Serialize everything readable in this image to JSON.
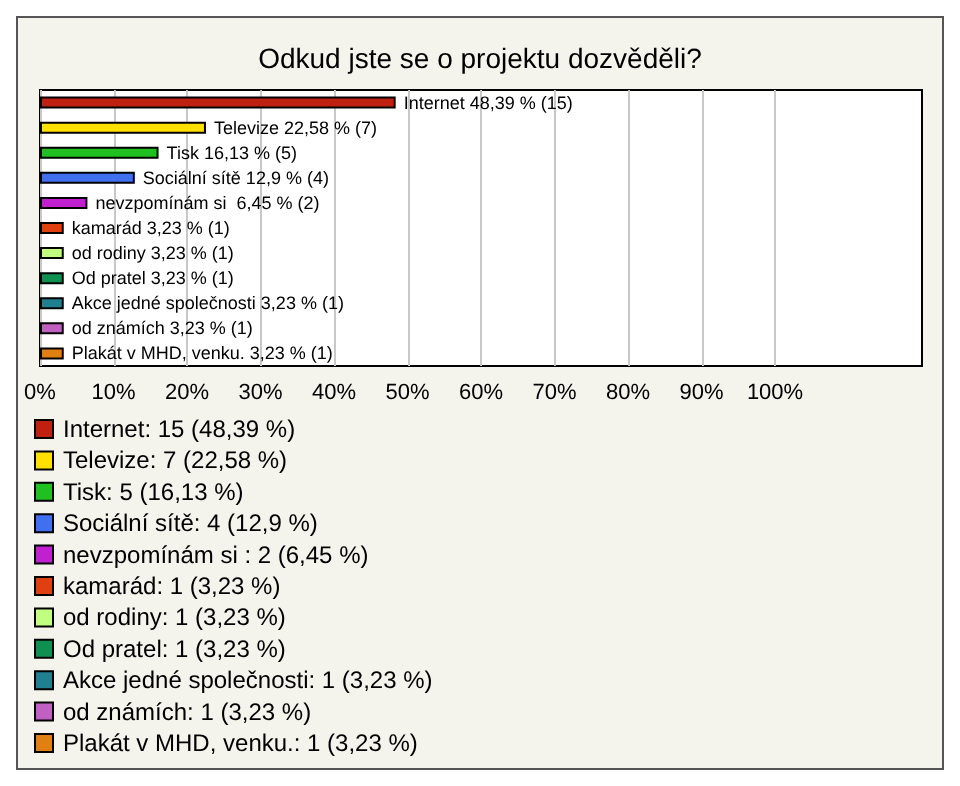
{
  "chart_data": {
    "type": "bar",
    "orientation": "horizontal",
    "stacked": true,
    "title": "Odkud jste se o projektu dozvěděli?",
    "categories": [
      null,
      null,
      null,
      null,
      null,
      null,
      null,
      null,
      null,
      null,
      null
    ],
    "series": [
      {
        "name": "Internet: 15 (48,39 %)",
        "color": "#c0200f",
        "values": [
          48.39,
          null,
          null,
          null,
          null,
          null,
          null,
          null,
          null,
          null,
          null
        ],
        "value_labels": [
          "Internet 48,39 % (15)",
          null,
          null,
          null,
          null,
          null,
          null,
          null,
          null,
          null,
          null
        ]
      },
      {
        "name": "Televize: 7 (22,58 %)",
        "color": "#ffe000",
        "values": [
          null,
          22.58,
          null,
          null,
          null,
          null,
          null,
          null,
          null,
          null,
          null
        ],
        "value_labels": [
          null,
          "Televize 22,58 % (7)",
          null,
          null,
          null,
          null,
          null,
          null,
          null,
          null,
          null
        ]
      },
      {
        "name": "Tisk: 5 (16,13 %)",
        "color": "#20c020",
        "values": [
          null,
          null,
          16.13,
          null,
          null,
          null,
          null,
          null,
          null,
          null,
          null
        ],
        "value_labels": [
          null,
          null,
          "Tisk 16,13 % (5)",
          null,
          null,
          null,
          null,
          null,
          null,
          null,
          null
        ]
      },
      {
        "name": "Sociální sítě: 4 (12,9 %)",
        "color": "#4070f0",
        "values": [
          null,
          null,
          null,
          12.9,
          null,
          null,
          null,
          null,
          null,
          null,
          null
        ],
        "value_labels": [
          null,
          null,
          null,
          "Sociální sítě 12,9 % (4)",
          null,
          null,
          null,
          null,
          null,
          null,
          null
        ]
      },
      {
        "name": "nevzpomínám si : 2 (6,45 %)",
        "color": "#c020d0",
        "values": [
          null,
          null,
          null,
          null,
          6.45,
          null,
          null,
          null,
          null,
          null,
          null
        ],
        "value_labels": [
          null,
          null,
          null,
          null,
          "nevzpomínám si  6,45 % (2)",
          null,
          null,
          null,
          null,
          null,
          null
        ]
      },
      {
        "name": "kamarád: 1 (3,23 %)",
        "color": "#e04010",
        "values": [
          null,
          null,
          null,
          null,
          null,
          3.23,
          null,
          null,
          null,
          null,
          null
        ],
        "value_labels": [
          null,
          null,
          null,
          null,
          null,
          "kamarád 3,23 % (1)",
          null,
          null,
          null,
          null,
          null
        ]
      },
      {
        "name": "od rodiny: 1 (3,23 %)",
        "color": "#c0ff80",
        "values": [
          null,
          null,
          null,
          null,
          null,
          null,
          3.23,
          null,
          null,
          null,
          null
        ],
        "value_labels": [
          null,
          null,
          null,
          null,
          null,
          null,
          "od rodiny 3,23 % (1)",
          null,
          null,
          null,
          null
        ]
      },
      {
        "name": "Od pratel: 1 (3,23 %)",
        "color": "#109050",
        "values": [
          null,
          null,
          null,
          null,
          null,
          null,
          null,
          3.23,
          null,
          null,
          null
        ],
        "value_labels": [
          null,
          null,
          null,
          null,
          null,
          null,
          null,
          "Od pratel 3,23 % (1)",
          null,
          null,
          null
        ]
      },
      {
        "name": "Akce jedné společnosti: 1 (3,23 %)",
        "color": "#208090",
        "values": [
          null,
          null,
          null,
          null,
          null,
          null,
          null,
          null,
          3.23,
          null,
          null
        ],
        "value_labels": [
          null,
          null,
          null,
          null,
          null,
          null,
          null,
          null,
          "Akce jedné společnosti 3,23 % (1)",
          null,
          null
        ]
      },
      {
        "name": "od známích: 1 (3,23 %)",
        "color": "#c060c0",
        "values": [
          null,
          null,
          null,
          null,
          null,
          null,
          null,
          null,
          null,
          3.23,
          null
        ],
        "value_labels": [
          null,
          null,
          null,
          null,
          null,
          null,
          null,
          null,
          null,
          "od známích 3,23 % (1)",
          null
        ]
      },
      {
        "name": "Plakát v MHD, venku.: 1 (3,23 %)",
        "color": "#e08010",
        "values": [
          null,
          null,
          null,
          null,
          null,
          null,
          null,
          null,
          null,
          null,
          3.23
        ],
        "value_labels": [
          null,
          null,
          null,
          null,
          null,
          null,
          null,
          null,
          null,
          null,
          "Plakát v MHD, venku. 3,23 % (1)"
        ]
      }
    ],
    "xlim": [
      0,
      120
    ],
    "xticks": [
      {
        "value": 0,
        "label": "0%"
      },
      {
        "value": 10,
        "label": "10%"
      },
      {
        "value": 20,
        "label": "20%"
      },
      {
        "value": 30,
        "label": "30%"
      },
      {
        "value": 40,
        "label": "40%"
      },
      {
        "value": 50,
        "label": "50%"
      },
      {
        "value": 60,
        "label": "60%"
      },
      {
        "value": 70,
        "label": "70%"
      },
      {
        "value": 80,
        "label": "80%"
      },
      {
        "value": 90,
        "label": "90%"
      },
      {
        "value": 100,
        "label": "100%"
      }
    ],
    "grid": "x",
    "legend": "bottom",
    "tick_labels": "x"
  }
}
